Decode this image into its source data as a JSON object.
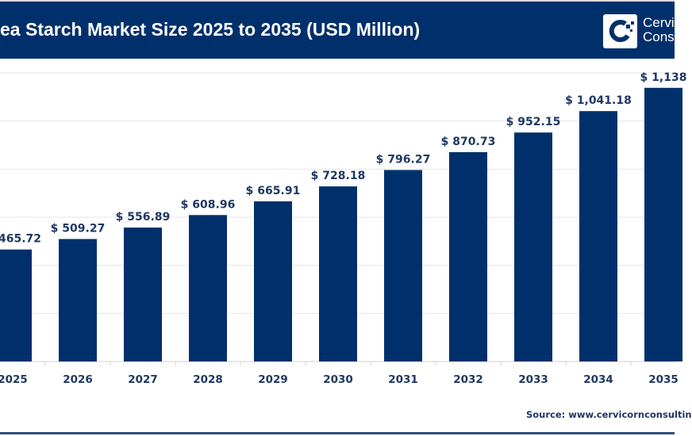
{
  "header": {
    "title": "ea Starch Market Size 2025 to 2035 (USD Million)",
    "logo_text_line1": "Cervi",
    "logo_text_line2": "Cons"
  },
  "source": "Source: www.cervicornconsultin",
  "colors": {
    "bar": "#00306b",
    "header": "#00306b",
    "label": "#1f3864",
    "grid": "#e6e6e6"
  },
  "chart_data": {
    "type": "bar",
    "title": "ea Starch Market Size 2025 to 2035 (USD Million)",
    "categories": [
      "2025",
      "2026",
      "2027",
      "2028",
      "2029",
      "2030",
      "2031",
      "2032",
      "2033",
      "2034",
      "2035"
    ],
    "values": [
      465.72,
      509.27,
      556.89,
      608.96,
      665.91,
      728.18,
      796.27,
      870.73,
      952.15,
      1041.18,
      1138
    ],
    "data_labels": [
      "465.72",
      "$ 509.27",
      "$ 556.89",
      "$ 608.96",
      "$ 665.91",
      "$ 728.18",
      "$ 796.27",
      "$ 870.73",
      "$ 952.15",
      "$ 1,041.18",
      "$ 1,138"
    ],
    "ylim": [
      0,
      1400
    ],
    "grid": true,
    "y_tick_step": 200,
    "xlabel": "",
    "ylabel": ""
  }
}
